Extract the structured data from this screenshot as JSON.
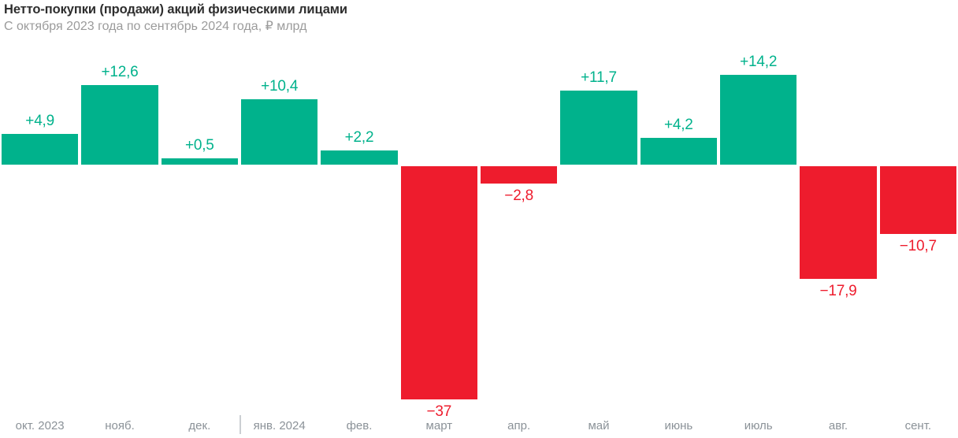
{
  "header": {
    "title": "Нетто-покупки (продажи) акций физическими лицами",
    "subtitle": "С октября 2023 года по сентябрь 2024 года, ₽ млрд"
  },
  "colors": {
    "positive": "#00b28c",
    "negative": "#ee1c2d",
    "title": "#2e2e2e",
    "subtitle": "#9b9b9b",
    "axis_label": "#8b9298",
    "year_separator": "#cbcfd3",
    "background": "#ffffff"
  },
  "chart_data": {
    "type": "bar",
    "title": "Нетто-покупки (продажи) акций физическими лицами",
    "subtitle": "С октября 2023 года по сентябрь 2024 года, ₽ млрд",
    "unit": "₽ млрд",
    "categories": [
      "окт. 2023",
      "нояб.",
      "дек.",
      "янв. 2024",
      "фев.",
      "март",
      "апр.",
      "май",
      "июнь",
      "июль",
      "авг.",
      "сент."
    ],
    "values": [
      4.9,
      12.6,
      0.5,
      10.4,
      2.2,
      -37,
      -2.8,
      11.7,
      4.2,
      14.2,
      -17.9,
      -10.7
    ],
    "value_labels": [
      "+4,9",
      "+12,6",
      "+0,5",
      "+10,4",
      "+2,2",
      "−37",
      "−2,8",
      "+11,7",
      "+4,2",
      "+14,2",
      "−17,9",
      "−10,7"
    ],
    "ylim": [
      -40,
      16
    ],
    "grid": false,
    "legend": false,
    "positive_color": "#00b28c",
    "negative_color": "#ee1c2d",
    "annotations": "year separator tick between дек. and янв. 2024 on x-axis"
  }
}
